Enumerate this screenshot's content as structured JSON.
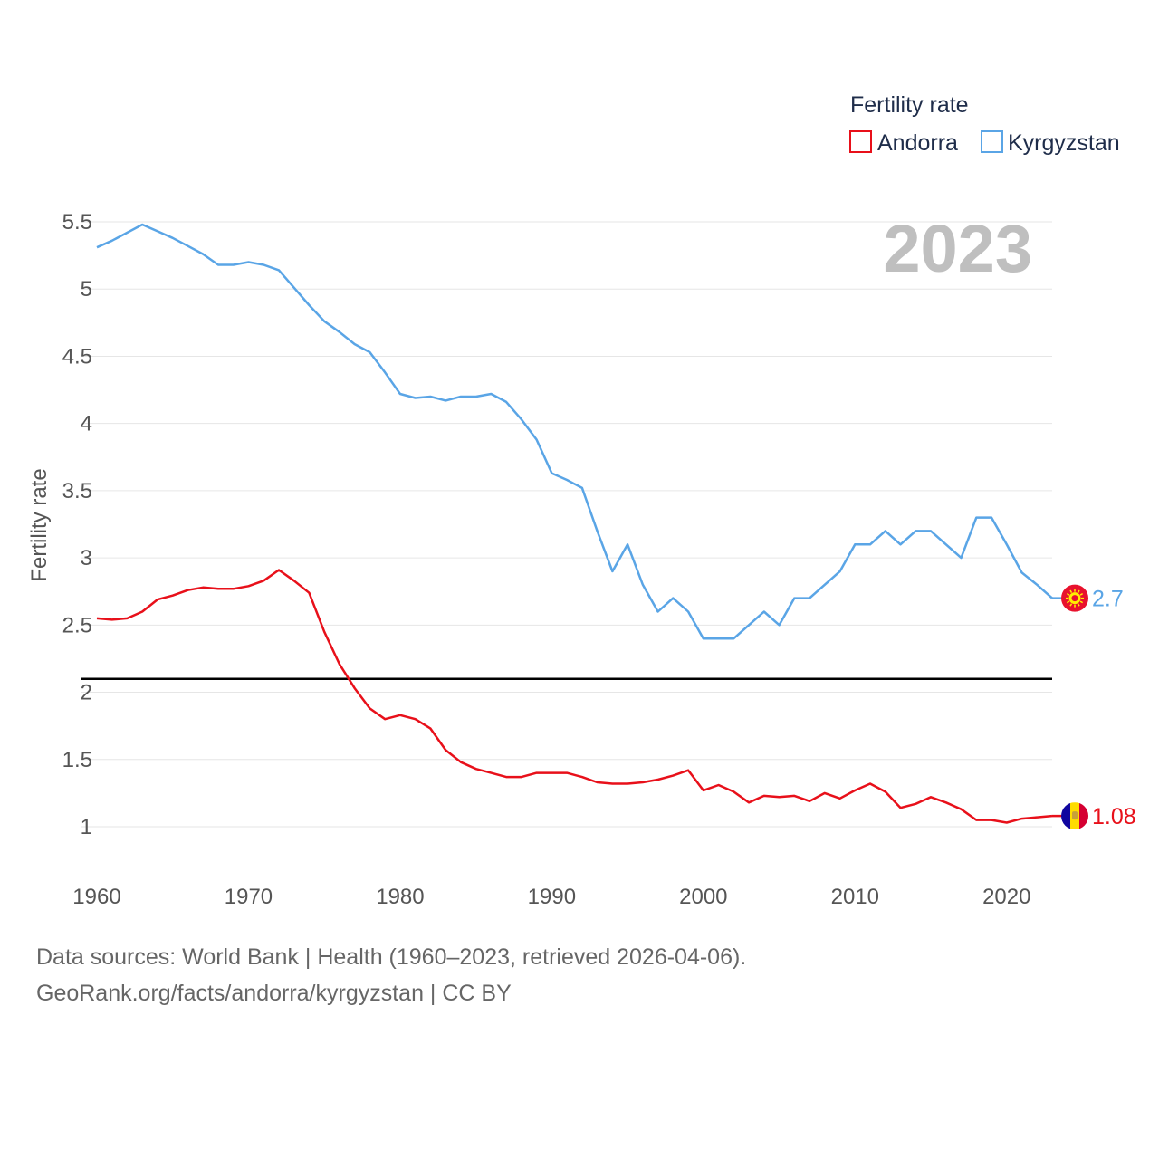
{
  "chart_data": {
    "type": "line",
    "title": "Fertility rate",
    "year": "2023",
    "xlabel": "",
    "ylabel": "Fertility rate",
    "xlim": [
      1960,
      2023
    ],
    "ylim": [
      0.7,
      5.65
    ],
    "xticks": [
      1960,
      1970,
      1980,
      1990,
      2000,
      2010,
      2020
    ],
    "yticks": [
      1,
      1.5,
      2,
      2.5,
      3,
      3.5,
      4,
      4.5,
      5,
      5.5
    ],
    "ytick_labels": [
      "1",
      "1.5",
      "2",
      "2.5",
      "3",
      "3.5",
      "4",
      "4.5",
      "5",
      "5.5"
    ],
    "reference_line": 2.1,
    "x": [
      1960,
      1961,
      1962,
      1963,
      1964,
      1965,
      1966,
      1967,
      1968,
      1969,
      1970,
      1971,
      1972,
      1973,
      1974,
      1975,
      1976,
      1977,
      1978,
      1979,
      1980,
      1981,
      1982,
      1983,
      1984,
      1985,
      1986,
      1987,
      1988,
      1989,
      1990,
      1991,
      1992,
      1993,
      1994,
      1995,
      1996,
      1997,
      1998,
      1999,
      2000,
      2001,
      2002,
      2003,
      2004,
      2005,
      2006,
      2007,
      2008,
      2009,
      2010,
      2011,
      2012,
      2013,
      2014,
      2015,
      2016,
      2017,
      2018,
      2019,
      2020,
      2021,
      2022,
      2023
    ],
    "series": [
      {
        "name": "Andorra",
        "color": "#e8101a",
        "end_label": "1.08",
        "flag": "andorra-flag",
        "values": [
          2.55,
          2.54,
          2.55,
          2.6,
          2.69,
          2.72,
          2.76,
          2.78,
          2.77,
          2.77,
          2.79,
          2.83,
          2.91,
          2.83,
          2.74,
          2.45,
          2.21,
          2.03,
          1.88,
          1.8,
          1.83,
          1.8,
          1.73,
          1.57,
          1.48,
          1.43,
          1.4,
          1.37,
          1.37,
          1.4,
          1.4,
          1.4,
          1.37,
          1.33,
          1.32,
          1.32,
          1.33,
          1.35,
          1.38,
          1.42,
          1.27,
          1.31,
          1.26,
          1.18,
          1.23,
          1.22,
          1.23,
          1.19,
          1.25,
          1.21,
          1.27,
          1.32,
          1.26,
          1.14,
          1.17,
          1.22,
          1.18,
          1.13,
          1.05,
          1.05,
          1.03,
          1.06,
          1.07,
          1.08
        ]
      },
      {
        "name": "Kyrgyzstan",
        "color": "#5aa5e6",
        "end_label": "2.7",
        "flag": "kyrgyzstan-flag",
        "values": [
          5.31,
          5.36,
          5.42,
          5.48,
          5.43,
          5.38,
          5.32,
          5.26,
          5.18,
          5.18,
          5.2,
          5.18,
          5.14,
          5.01,
          4.88,
          4.76,
          4.68,
          4.59,
          4.53,
          4.38,
          4.22,
          4.19,
          4.2,
          4.17,
          4.2,
          4.2,
          4.22,
          4.16,
          4.03,
          3.88,
          3.63,
          3.58,
          3.52,
          3.2,
          2.9,
          3.1,
          2.8,
          2.6,
          2.7,
          2.6,
          2.4,
          2.4,
          2.4,
          2.5,
          2.6,
          2.5,
          2.7,
          2.7,
          2.8,
          2.9,
          3.1,
          3.1,
          3.2,
          3.1,
          3.2,
          3.2,
          3.1,
          3.0,
          3.3,
          3.3,
          3.1,
          2.89,
          2.8,
          2.7
        ]
      }
    ]
  },
  "footer": {
    "line1": "Data sources: World Bank | Health (1960–2023, retrieved 2026-04-06).",
    "line2": "GeoRank.org/facts/andorra/kyrgyzstan | CC BY"
  }
}
